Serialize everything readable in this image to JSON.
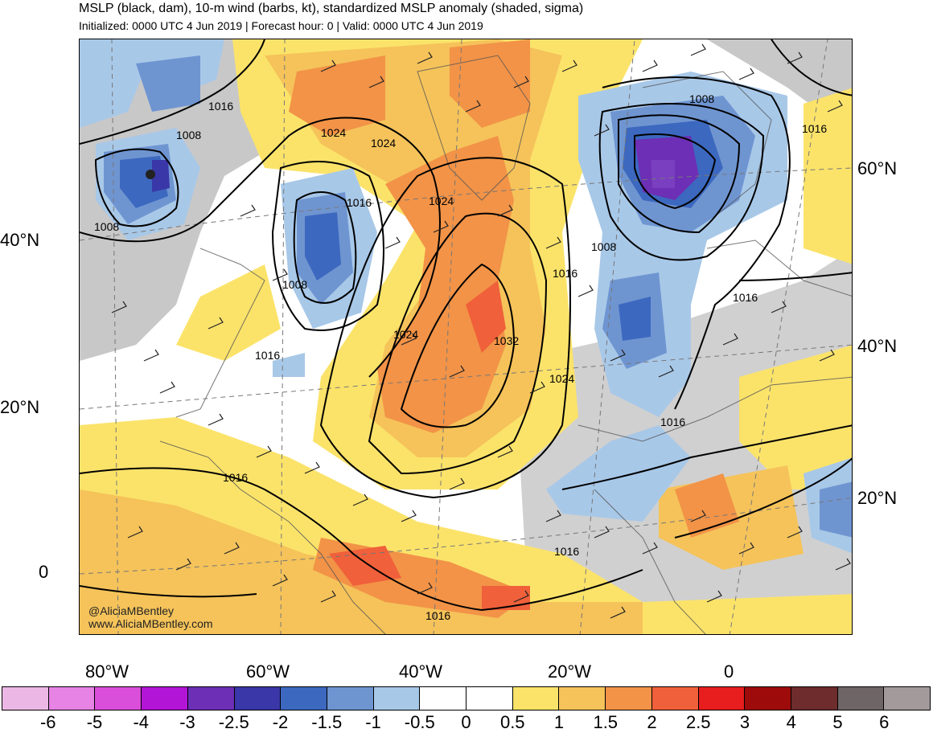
{
  "title": "MSLP (black, dam), 10-m wind (barbs, kt), standardized MSLP anomaly (shaded, sigma)",
  "subtitle": "Initialized: 0000 UTC 4 Jun 2019 | Forecast hour: 0 | Valid: 0000 UTC 4 Jun 2019",
  "credits": {
    "handle": "@AliciaMBentley",
    "website": "www.AliciaMBentley.com"
  },
  "lat_labels_left": [
    "40°N",
    "20°N",
    "0"
  ],
  "lat_labels_right": [
    "60°N",
    "40°N",
    "20°N"
  ],
  "lon_labels_bottom": [
    "80°W",
    "60°W",
    "40°W",
    "20°W",
    "0"
  ],
  "isobar_labels": [
    "1016",
    "1008",
    "1008",
    "1024",
    "1024",
    "1016",
    "1008",
    "1024",
    "1016",
    "1008",
    "1008",
    "1016",
    "1024",
    "1032",
    "1016",
    "1016",
    "1024",
    "1016",
    "1016",
    "1016",
    "1016"
  ],
  "colorbar": {
    "labels": [
      "-6",
      "-5",
      "-4",
      "-3",
      "-2.5",
      "-2",
      "-1.5",
      "-1",
      "-0.5",
      "0",
      "0.5",
      "1",
      "1.5",
      "2",
      "2.5",
      "3",
      "4",
      "5",
      "6"
    ],
    "colors": [
      "#ebb8e6",
      "#e683e4",
      "#d94fd9",
      "#b315d6",
      "#6c2fb5",
      "#3a37a8",
      "#3c68bf",
      "#6f95d1",
      "#a8c8e8",
      "#ffffff",
      "#ffffff",
      "#fbe36a",
      "#f5c35a",
      "#f29347",
      "#f0603a",
      "#e81d1d",
      "#9e0b0b",
      "#6e2c2c",
      "#6e6566",
      "#a39b9b"
    ]
  },
  "colors": {
    "land_gray": "#c8c8c8",
    "isobar": "#000000",
    "coast": "#555555"
  }
}
